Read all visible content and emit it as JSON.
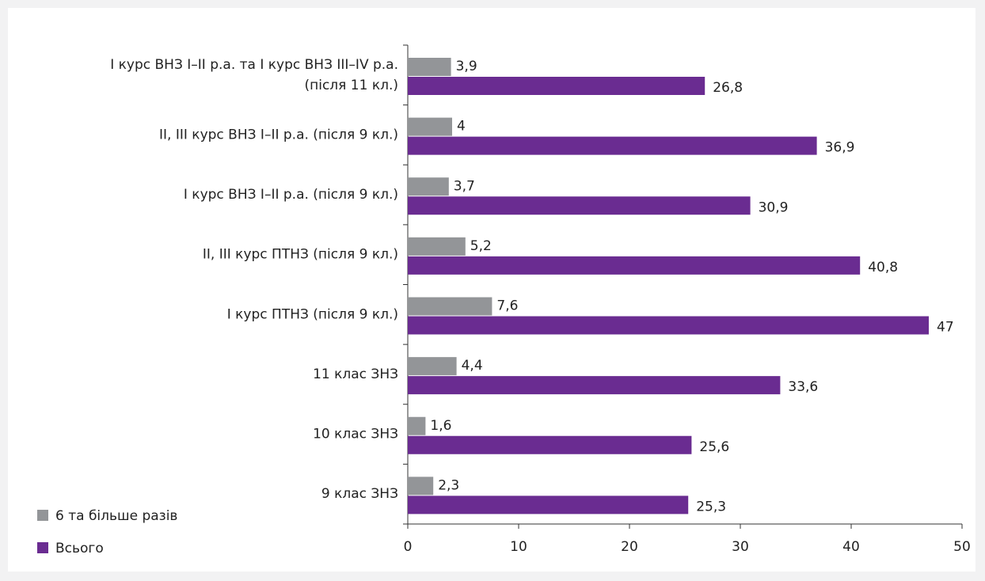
{
  "chart_data": {
    "type": "bar",
    "orientation": "horizontal",
    "categories": [
      "І курс ВНЗ І–ІІ р.а. та І курс ВНЗ ІІІ–ІV р.а.\n(після 11 кл.)",
      "ІІ, ІІІ курс ВНЗ І–ІІ р.а. (після 9 кл.)",
      "І курс ВНЗ І–ІІ р.а. (після 9 кл.)",
      "ІІ, ІІІ курс ПТНЗ (після 9 кл.)",
      "І курс ПТНЗ (після 9 кл.)",
      "11 клас ЗНЗ",
      "10 клас ЗНЗ",
      "9 клас ЗНЗ"
    ],
    "series": [
      {
        "name": "6 та більше разів",
        "color": "#939598",
        "values": [
          3.9,
          4,
          3.7,
          5.2,
          7.6,
          4.4,
          1.6,
          2.3
        ],
        "value_labels": [
          "3,9",
          "4",
          "3,7",
          "5,2",
          "7,6",
          "4,4",
          "1,6",
          "2,3"
        ]
      },
      {
        "name": "Всього",
        "color": "#6a2c91",
        "values": [
          26.8,
          36.9,
          30.9,
          40.8,
          47,
          33.6,
          25.6,
          25.3
        ],
        "value_labels": [
          "26,8",
          "36,9",
          "30,9",
          "40,8",
          "47",
          "33,6",
          "25,6",
          "25,3"
        ]
      }
    ],
    "xlim": [
      0,
      50
    ],
    "xticks": [
      0,
      10,
      20,
      30,
      40,
      50
    ],
    "legend": "bottom-left"
  }
}
